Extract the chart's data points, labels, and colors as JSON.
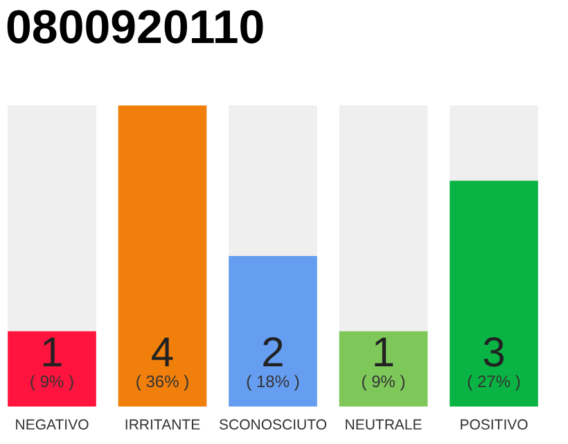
{
  "chart_data": {
    "type": "bar",
    "title": "0800920110",
    "categories": [
      "NEGATIVO",
      "IRRITANTE",
      "SCONOSCIUTO",
      "NEUTRALE",
      "POSITIVO"
    ],
    "values": [
      1,
      4,
      2,
      1,
      3
    ],
    "colors": [
      "#fe143e",
      "#f07f0b",
      "#659df0",
      "#7ec85a",
      "#0ab444"
    ],
    "data_labels": true,
    "annotations": [
      "( 9% )",
      "( 36% )",
      "( 18% )",
      "( 9% )",
      "( 27% )"
    ],
    "grid": false
  }
}
